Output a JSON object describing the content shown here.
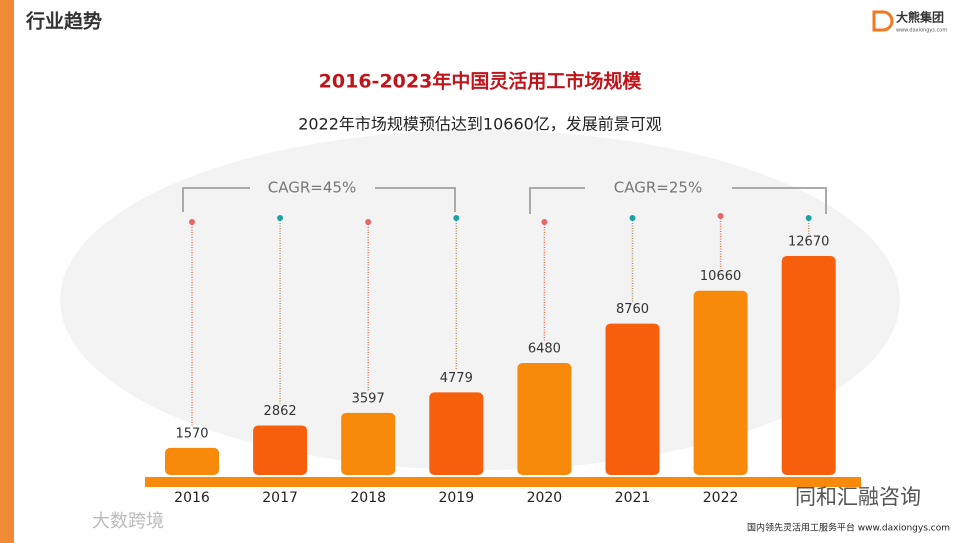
{
  "header": {
    "section": "行业趋势",
    "logo_name": "大熊集团",
    "logo_url": "www.daxiongys.com"
  },
  "chart_data": {
    "type": "bar",
    "title": "2016-2023年中国灵活用工市场规模",
    "subtitle": "2022年市场规模预估达到10660亿，发展前景可观",
    "categories": [
      "2016",
      "2017",
      "2018",
      "2019",
      "2020",
      "2021",
      "2022",
      null
    ],
    "values": [
      1570,
      2862,
      3597,
      4779,
      6480,
      8760,
      10660,
      12670
    ],
    "colors": [
      "#f7890b",
      "#f65f0c",
      "#f7890b",
      "#f65f0c",
      "#f7890b",
      "#f65f0c",
      "#f7890b",
      "#f65f0c"
    ],
    "annotations": [
      "CAGR=45%",
      "CAGR=25%"
    ]
  },
  "footer": {
    "tagline": "国内领先灵活用工服务平台 www.daxiongys.com",
    "watermark_left": "大数跨境",
    "watermark_right": "同和汇融咨询"
  }
}
